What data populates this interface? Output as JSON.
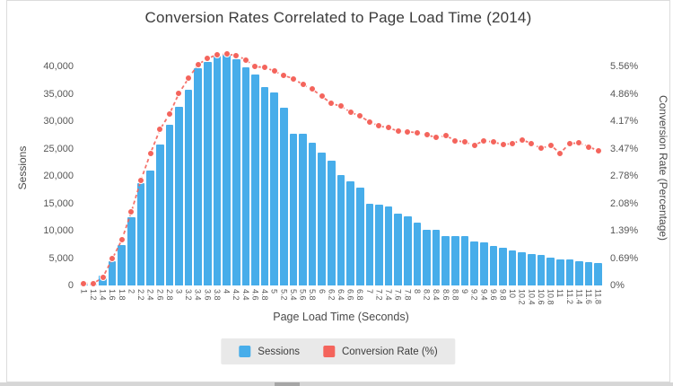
{
  "page": {
    "title": "Conversion Rates Correlated to Page Load Time (2014)"
  },
  "chart_data": {
    "type": "bar",
    "title": "Conversion Rates Correlated to Page Load Time (2014)",
    "xlabel": "Page Load Time (Seconds)",
    "x_categories": [
      "1",
      "1.2",
      "1.4",
      "1.6",
      "1.8",
      "2",
      "2.2",
      "2.4",
      "2.6",
      "2.8",
      "3",
      "3.2",
      "3.4",
      "3.6",
      "3.8",
      "4",
      "4.2",
      "4.4",
      "4.6",
      "4.8",
      "5",
      "5.2",
      "5.4",
      "5.6",
      "5.8",
      "6",
      "6.2",
      "6.4",
      "6.6",
      "6.8",
      "7",
      "7.2",
      "7.4",
      "7.6",
      "7.8",
      "8",
      "8.2",
      "8.4",
      "8.6",
      "8.8",
      "9",
      "9.2",
      "9.4",
      "9.6",
      "9.8",
      "10",
      "10.2",
      "10.4",
      "10.6",
      "10.8",
      "11",
      "11.2",
      "11.4",
      "11.6",
      "11.8"
    ],
    "y_axis_left": {
      "label": "Sessions",
      "tick_labels": [
        "0",
        "5,000",
        "10,000",
        "15,000",
        "20,000",
        "25,000",
        "30,000",
        "35,000",
        "40,000"
      ],
      "tick_values": [
        0,
        5000,
        10000,
        15000,
        20000,
        25000,
        30000,
        35000,
        40000
      ],
      "max_tick": 40000
    },
    "y_axis_right": {
      "label": "Conversion Rate (Percentage)",
      "tick_labels": [
        "0%",
        "0.69%",
        "1.39%",
        "2.08%",
        "2.78%",
        "3.47%",
        "4.17%",
        "4.86%",
        "5.56%"
      ],
      "tick_values": [
        0,
        0.69,
        1.39,
        2.08,
        2.78,
        3.47,
        4.17,
        4.86,
        5.56
      ],
      "max_tick": 5.56
    },
    "series": [
      {
        "name": "Sessions",
        "type": "bar",
        "color": "#47ADEA",
        "values": [
          150,
          350,
          1800,
          4400,
          7300,
          12450,
          18700,
          21000,
          25800,
          29400,
          32600,
          35700,
          39700,
          40900,
          41900,
          42100,
          41300,
          39800,
          38600,
          36300,
          35300,
          32500,
          27650,
          27650,
          26000,
          24300,
          22800,
          20100,
          19100,
          17800,
          15000,
          14800,
          14500,
          13100,
          12600,
          11500,
          10150,
          10150,
          9060,
          9060,
          9060,
          8080,
          7860,
          7150,
          6880,
          6330,
          6060,
          5790,
          5510,
          5130,
          4800,
          4700,
          4420,
          4260,
          4150
        ]
      },
      {
        "name": "Conversion Rate (%)",
        "type": "line",
        "color": "#F4645C",
        "values": [
          0.05,
          0.05,
          0.2,
          0.68,
          1.16,
          1.87,
          2.67,
          3.35,
          3.96,
          4.35,
          4.88,
          5.26,
          5.61,
          5.76,
          5.86,
          5.87,
          5.84,
          5.73,
          5.55,
          5.54,
          5.44,
          5.33,
          5.25,
          5.1,
          4.98,
          4.8,
          4.62,
          4.55,
          4.4,
          4.3,
          4.15,
          4.05,
          4.0,
          3.92,
          3.9,
          3.88,
          3.82,
          3.76,
          3.8,
          3.68,
          3.64,
          3.56,
          3.68,
          3.64,
          3.58,
          3.6,
          3.7,
          3.6,
          3.48,
          3.56,
          3.36,
          3.6,
          3.62,
          3.52,
          3.42
        ]
      }
    ],
    "legend": {
      "position": "bottom",
      "items": [
        "Sessions",
        "Conversion Rate (%)"
      ]
    },
    "grid": "off"
  },
  "colors": {
    "bar": "#47ADEA",
    "line": "#F4645C",
    "legend_bg": "#e9e9e9",
    "card_border": "#dcdcdc"
  }
}
